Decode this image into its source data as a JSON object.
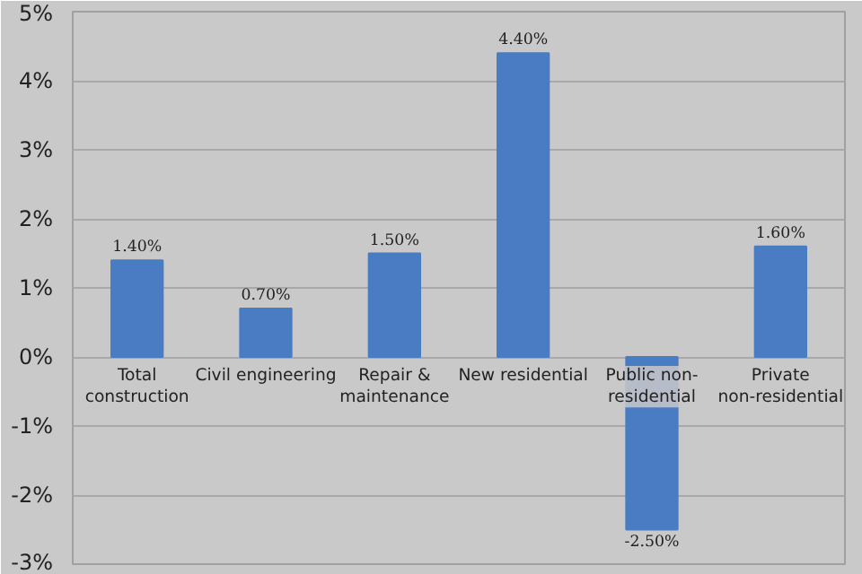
{
  "chart_data": {
    "type": "bar",
    "categories": [
      "Total\nconstruction",
      "Civil engineering",
      "Repair &\nmaintenance",
      "New residential",
      "Public non-\nresidential",
      "Private\nnon-residential"
    ],
    "values": [
      1.4,
      0.7,
      1.5,
      4.4,
      -2.5,
      1.6
    ],
    "value_labels": [
      "1.40%",
      "0.70%",
      "1.50%",
      "4.40%",
      "-2.50%",
      "1.60%"
    ],
    "color": "#4a7cc4",
    "ylim": [
      -3,
      5
    ],
    "yticks": [
      {
        "value": -3,
        "label": "-3%"
      },
      {
        "value": -2,
        "label": "-2%"
      },
      {
        "value": -1,
        "label": "-1%"
      },
      {
        "value": 0,
        "label": "0%"
      },
      {
        "value": 1,
        "label": "1%"
      },
      {
        "value": 2,
        "label": "2%"
      },
      {
        "value": 3,
        "label": "3%"
      },
      {
        "value": 4,
        "label": "4%"
      },
      {
        "value": 5,
        "label": "5%"
      }
    ],
    "grid": "y"
  }
}
